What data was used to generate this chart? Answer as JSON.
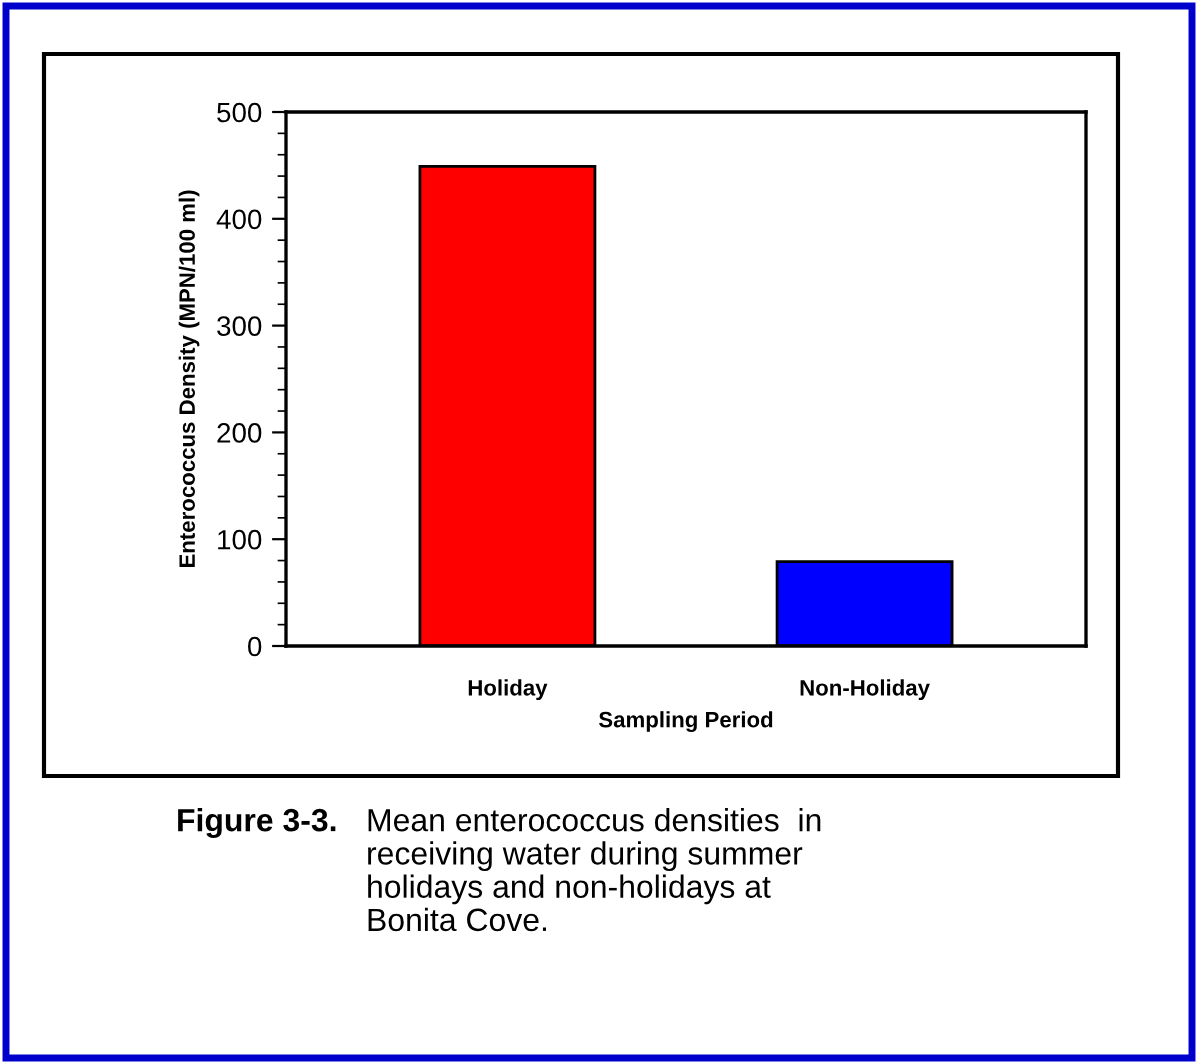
{
  "chart_data": {
    "type": "bar",
    "categories": [
      "Holiday",
      "Non-Holiday"
    ],
    "series": [
      {
        "values": [
          449,
          79
        ],
        "colors": [
          "#ff0000",
          "#0000ff"
        ]
      }
    ],
    "xlabel": "Sampling Period",
    "ylabel": "Enterococcus Density (MPN/100 ml)",
    "ylim": [
      0,
      500
    ],
    "yticks": [
      0,
      100,
      200,
      300,
      400,
      500
    ],
    "grid": false,
    "legend": false,
    "annotations": [
      "Figure 3-3.",
      "Mean enterococcus densities  in\nreceiving water during summer\nholidays and non-holidays at\nBonita Cove."
    ]
  }
}
